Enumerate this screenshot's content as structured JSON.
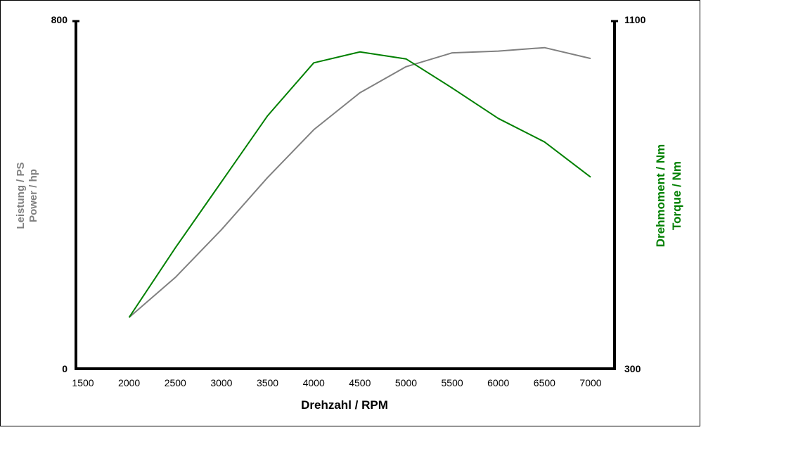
{
  "chart_data": {
    "type": "line",
    "x": [
      2000,
      2500,
      3000,
      3500,
      4000,
      4500,
      5000,
      5500,
      6000,
      6500,
      7000
    ],
    "xlim": [
      1500,
      7000
    ],
    "x_ticks": [
      "1500",
      "2000",
      "2500",
      "3000",
      "3500",
      "4000",
      "4500",
      "5000",
      "5500",
      "6000",
      "6500",
      "7000"
    ],
    "xlabel": "Drehzahl / RPM",
    "y_left": {
      "label_line1": "Leistung / PS",
      "label_line2": "Power / hp",
      "min": "0",
      "max": "800",
      "range": [
        0,
        800
      ]
    },
    "y_right": {
      "label_line1": "Drehmoment / Nm",
      "label_line2": "Torque / Nm",
      "min": "300",
      "max": "1100",
      "range": [
        300,
        1100
      ]
    },
    "series": [
      {
        "name": "Leistung / Power",
        "axis": "left",
        "color": "#808080",
        "values": [
          118,
          210,
          320,
          440,
          550,
          635,
          695,
          727,
          731,
          739,
          714
        ]
      },
      {
        "name": "Drehmoment / Torque",
        "axis": "right",
        "color": "#008000",
        "values": [
          418,
          578,
          730,
          882,
          1004,
          1029,
          1013,
          946,
          876,
          822,
          741
        ]
      }
    ]
  }
}
